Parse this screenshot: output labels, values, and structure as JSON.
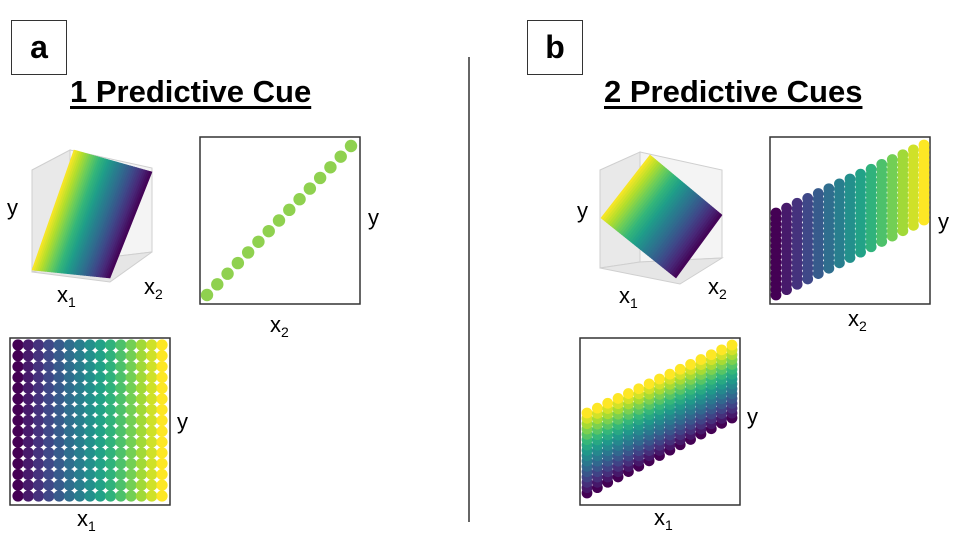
{
  "panels": {
    "a": {
      "letter": "a",
      "title": "1 Predictive Cue",
      "surface_labels": {
        "y": "y",
        "x1_base": "x",
        "x1_sub": "1",
        "x2_base": "x",
        "x2_sub": "2"
      },
      "scatter_x2_labels": {
        "y": "y",
        "x_base": "x",
        "x_sub": "2"
      },
      "scatter_x1_labels": {
        "y": "y",
        "x_base": "x",
        "x_sub": "1"
      }
    },
    "b": {
      "letter": "b",
      "title": "2 Predictive Cues",
      "surface_labels": {
        "y": "y",
        "x1_base": "x",
        "x1_sub": "1",
        "x2_base": "x",
        "x2_sub": "2"
      },
      "scatter_x2_labels": {
        "y": "y",
        "x_base": "x",
        "x_sub": "2"
      },
      "scatter_x1_labels": {
        "y": "y",
        "x_base": "x",
        "x_sub": "1"
      }
    }
  },
  "colors": {
    "viridis": [
      "#440154",
      "#482878",
      "#3e4a89",
      "#31688e",
      "#26828e",
      "#1f9e89",
      "#35b779",
      "#6ece58",
      "#b5de2b",
      "#fde725"
    ],
    "single_series": "#8fd14f",
    "frame": "#333333",
    "divider": "#666666"
  }
}
